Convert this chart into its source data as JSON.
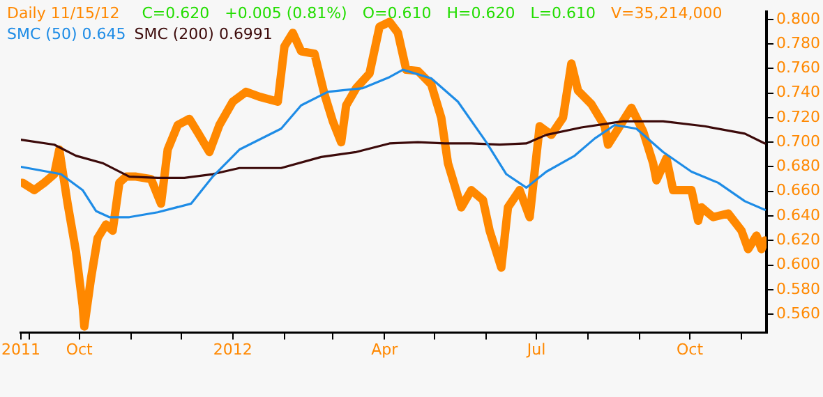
{
  "chart_data": {
    "type": "line",
    "title": "Daily 11/15/12",
    "annotations": [
      "C=0.620",
      "+0.005 (0.81%)",
      "O=0.610",
      "H=0.620",
      "L=0.610",
      "V=35,214,000"
    ],
    "xlim": [
      "2011-08-27",
      "2012-11-16"
    ],
    "xticks": [
      {
        "value": "2011-08-27",
        "label": "2011"
      },
      {
        "value": "2011-09-01",
        "label": null
      },
      {
        "value": "2011-10-01",
        "label": "Oct"
      },
      {
        "value": "2011-11-01",
        "label": null
      },
      {
        "value": "2011-12-01",
        "label": null
      },
      {
        "value": "2012-01-01",
        "label": "2012"
      },
      {
        "value": "2012-02-01",
        "label": null
      },
      {
        "value": "2012-03-01",
        "label": null
      },
      {
        "value": "2012-04-01",
        "label": "Apr"
      },
      {
        "value": "2012-05-01",
        "label": null
      },
      {
        "value": "2012-06-01",
        "label": null
      },
      {
        "value": "2012-07-01",
        "label": "Jul"
      },
      {
        "value": "2012-08-01",
        "label": null
      },
      {
        "value": "2012-09-01",
        "label": null
      },
      {
        "value": "2012-10-01",
        "label": "Oct"
      },
      {
        "value": "2012-11-01",
        "label": null
      }
    ],
    "ylim": [
      0.545,
      0.806
    ],
    "yticks": [
      {
        "value": 0.56,
        "label": "0.560"
      },
      {
        "value": 0.58,
        "label": "0.580"
      },
      {
        "value": 0.6,
        "label": "0.600"
      },
      {
        "value": 0.62,
        "label": "0.620"
      },
      {
        "value": 0.64,
        "label": "0.640"
      },
      {
        "value": 0.66,
        "label": "0.660"
      },
      {
        "value": 0.68,
        "label": "0.680"
      },
      {
        "value": 0.7,
        "label": "0.700"
      },
      {
        "value": 0.72,
        "label": "0.720"
      },
      {
        "value": 0.74,
        "label": "0.740"
      },
      {
        "value": 0.76,
        "label": "0.760"
      },
      {
        "value": 0.78,
        "label": "0.780"
      },
      {
        "value": 0.8,
        "label": "0.800"
      }
    ],
    "legend": "top left",
    "marker": "none",
    "line_style": "solid",
    "series": [
      {
        "color": "#ff8800",
        "x": [
          "2011-08-28",
          "2011-09-04",
          "2011-09-10",
          "2011-09-16",
          "2011-09-19",
          "2011-09-24",
          "2011-09-29",
          "2011-10-03",
          "2011-10-04",
          "2011-10-08",
          "2011-10-12",
          "2011-10-17",
          "2011-10-21",
          "2011-10-25",
          "2011-10-29",
          "2011-11-04",
          "2011-11-13",
          "2011-11-19",
          "2011-11-23",
          "2011-11-29",
          "2011-12-06",
          "2011-12-11",
          "2011-12-18",
          "2011-12-24",
          "2012-01-01",
          "2012-01-09",
          "2012-01-17",
          "2012-01-28",
          "2012-02-01",
          "2012-02-06",
          "2012-02-11",
          "2012-02-19",
          "2012-02-25",
          "2012-03-01",
          "2012-03-06",
          "2012-03-09",
          "2012-03-15",
          "2012-03-23",
          "2012-03-29",
          "2012-04-04",
          "2012-04-09",
          "2012-04-14",
          "2012-04-21",
          "2012-04-29",
          "2012-05-05",
          "2012-05-09",
          "2012-05-17",
          "2012-05-23",
          "2012-05-30",
          "2012-06-03",
          "2012-06-10",
          "2012-06-14",
          "2012-06-21",
          "2012-06-27",
          "2012-07-03",
          "2012-07-10",
          "2012-07-17",
          "2012-07-22",
          "2012-07-26",
          "2012-08-03",
          "2012-08-11",
          "2012-08-13",
          "2012-08-20",
          "2012-08-27",
          "2012-09-03",
          "2012-09-09",
          "2012-09-11",
          "2012-09-17",
          "2012-09-21",
          "2012-10-02",
          "2012-10-06",
          "2012-10-08",
          "2012-10-15",
          "2012-10-24",
          "2012-11-01",
          "2012-11-05",
          "2012-11-10",
          "2012-11-13",
          "2012-11-15"
        ],
        "values": [
          0.667,
          0.661,
          0.667,
          0.674,
          0.694,
          0.65,
          0.611,
          0.567,
          0.55,
          0.589,
          0.622,
          0.633,
          0.628,
          0.667,
          0.672,
          0.672,
          0.67,
          0.65,
          0.694,
          0.714,
          0.719,
          0.708,
          0.692,
          0.714,
          0.733,
          0.741,
          0.737,
          0.733,
          0.778,
          0.789,
          0.774,
          0.772,
          0.739,
          0.717,
          0.7,
          0.73,
          0.744,
          0.756,
          0.794,
          0.798,
          0.789,
          0.759,
          0.758,
          0.747,
          0.72,
          0.683,
          0.647,
          0.661,
          0.653,
          0.628,
          0.598,
          0.647,
          0.661,
          0.639,
          0.713,
          0.706,
          0.72,
          0.764,
          0.742,
          0.731,
          0.713,
          0.698,
          0.713,
          0.728,
          0.709,
          0.683,
          0.669,
          0.687,
          0.661,
          0.661,
          0.636,
          0.647,
          0.639,
          0.642,
          0.628,
          0.613,
          0.624,
          0.613,
          0.62
        ]
      },
      {
        "name": "SMC (50) 0.645",
        "color": "#1e8ce6",
        "x": [
          "2011-08-27",
          "2011-09-20",
          "2011-10-03",
          "2011-10-11",
          "2011-10-19",
          "2011-10-31",
          "2011-11-17",
          "2011-12-07",
          "2011-12-20",
          "2012-01-05",
          "2012-01-30",
          "2012-02-11",
          "2012-02-27",
          "2012-03-19",
          "2012-04-04",
          "2012-04-12",
          "2012-04-29",
          "2012-05-15",
          "2012-06-01",
          "2012-06-13",
          "2012-06-25",
          "2012-07-07",
          "2012-07-24",
          "2012-08-05",
          "2012-08-17",
          "2012-08-30",
          "2012-09-15",
          "2012-10-02",
          "2012-10-18",
          "2012-11-03",
          "2012-11-15"
        ],
        "values": [
          0.68,
          0.674,
          0.661,
          0.644,
          0.639,
          0.639,
          0.643,
          0.65,
          0.672,
          0.694,
          0.711,
          0.73,
          0.741,
          0.744,
          0.753,
          0.759,
          0.752,
          0.733,
          0.7,
          0.674,
          0.663,
          0.676,
          0.689,
          0.703,
          0.714,
          0.711,
          0.692,
          0.676,
          0.667,
          0.652,
          0.645
        ]
      },
      {
        "name": "SMC (200) 0.6991",
        "color": "#3c0a0a",
        "x": [
          "2011-08-27",
          "2011-09-16",
          "2011-09-29",
          "2011-10-15",
          "2011-10-31",
          "2011-11-17",
          "2011-12-03",
          "2011-12-20",
          "2012-01-05",
          "2012-01-30",
          "2012-02-23",
          "2012-03-15",
          "2012-04-04",
          "2012-04-21",
          "2012-05-07",
          "2012-05-23",
          "2012-06-09",
          "2012-06-25",
          "2012-07-07",
          "2012-07-28",
          "2012-08-22",
          "2012-09-15",
          "2012-10-10",
          "2012-11-03",
          "2012-11-15"
        ],
        "values": [
          0.702,
          0.698,
          0.689,
          0.683,
          0.672,
          0.671,
          0.671,
          0.674,
          0.679,
          0.679,
          0.688,
          0.692,
          0.699,
          0.7,
          0.699,
          0.699,
          0.698,
          0.699,
          0.706,
          0.712,
          0.717,
          0.717,
          0.713,
          0.707,
          0.699
        ]
      }
    ]
  }
}
